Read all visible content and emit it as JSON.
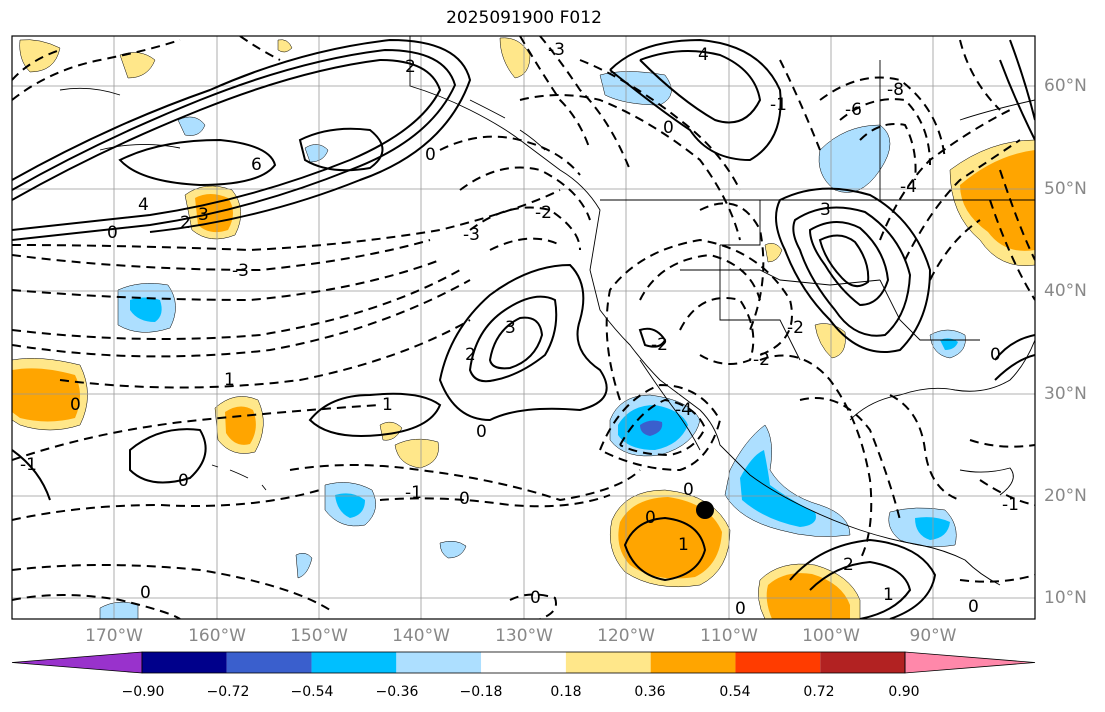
{
  "title": "2025091900 F012",
  "lon_labels": [
    "170°W",
    "160°W",
    "150°W",
    "140°W",
    "130°W",
    "120°W",
    "110°W",
    "100°W",
    "90°W"
  ],
  "lat_labels": [
    "60°N",
    "50°N",
    "40°N",
    "30°N",
    "20°N",
    "10°N"
  ],
  "colorbar": {
    "ticks": [
      "−0.90",
      "−0.72",
      "−0.54",
      "−0.36",
      "−0.18",
      "0.18",
      "0.36",
      "0.54",
      "0.72",
      "0.90"
    ],
    "colors": [
      "#9932CC",
      "#00008B",
      "#3A5FCD",
      "#00BFFF",
      "#ADDFFF",
      "#FFFFFF",
      "#FFE78A",
      "#FFA500",
      "#FF3C00",
      "#B22222",
      "#FF88AA"
    ]
  },
  "map": {
    "lon_range": [
      "180°W",
      "80°W"
    ],
    "lat_range": [
      "8°N",
      "66°N"
    ],
    "contour_labels": [
      "6",
      "4",
      "3",
      "2",
      "1",
      "0",
      "-1",
      "-2",
      "-3",
      "-4",
      "-6",
      "-8"
    ],
    "marker": "storm-center-dot"
  }
}
